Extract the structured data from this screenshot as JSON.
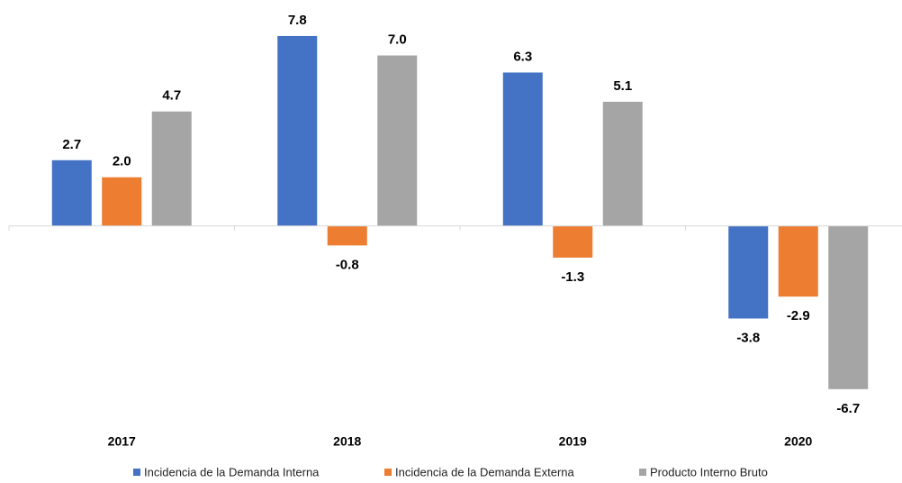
{
  "chart_data": {
    "type": "bar",
    "categories": [
      "2017",
      "2018",
      "2019",
      "2020"
    ],
    "series": [
      {
        "name": "Incidencia de la Demanda Interna",
        "color": "#4472c4",
        "values": [
          2.7,
          7.8,
          6.3,
          -3.8
        ],
        "value_labels": [
          "2.7",
          "7.8",
          "6.3",
          "-3.8"
        ]
      },
      {
        "name": "Incidencia de la Demanda Externa",
        "color": "#ed7d31",
        "values": [
          2.0,
          -0.8,
          -1.3,
          -2.9
        ],
        "value_labels": [
          "2.0",
          "-0.8",
          "-1.3",
          "-2.9"
        ]
      },
      {
        "name": "Producto Interno Bruto",
        "color": "#a5a5a5",
        "values": [
          4.7,
          7.0,
          5.1,
          -6.7
        ],
        "value_labels": [
          "4.7",
          "7.0",
          "5.1",
          "-6.7"
        ]
      }
    ],
    "ylim": [
      -8,
      9
    ],
    "grid": false,
    "legend": "bottom"
  }
}
